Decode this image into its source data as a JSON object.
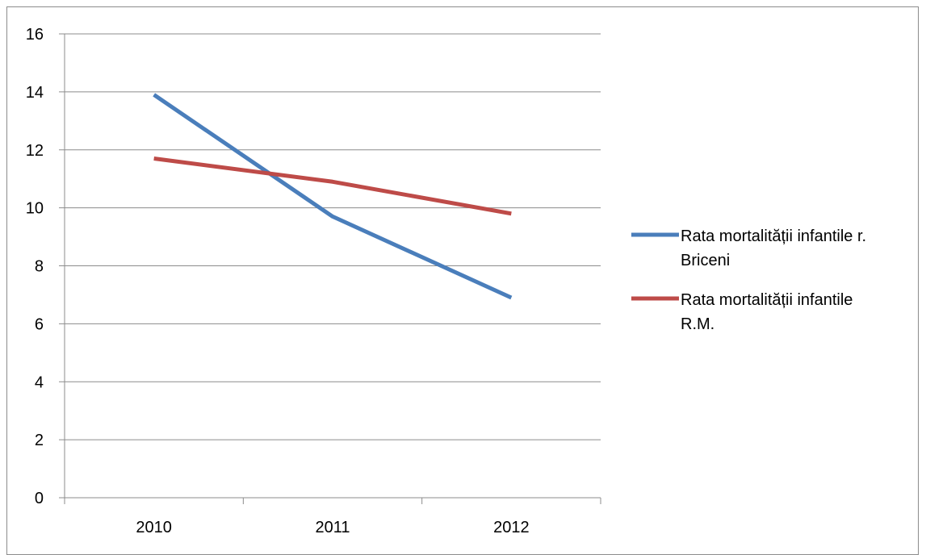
{
  "chart_data": {
    "type": "line",
    "title": "",
    "xlabel": "",
    "ylabel": "",
    "categories": [
      "2010",
      "2011",
      "2012"
    ],
    "ylim": [
      0,
      16
    ],
    "yticks": [
      0,
      2,
      4,
      6,
      8,
      10,
      12,
      14,
      16
    ],
    "grid": true,
    "legend_position": "right",
    "series": [
      {
        "name": "Rata mortalității infantile r. Briceni",
        "legend_lines": [
          "Rata mortalității infantile r.",
          "Briceni"
        ],
        "values": [
          13.9,
          9.7,
          6.9
        ],
        "color": "#4a7ebb"
      },
      {
        "name": "Rata mortalității infantile R.M.",
        "legend_lines": [
          "Rata mortalității infantile",
          "R.M."
        ],
        "values": [
          11.7,
          10.9,
          9.8
        ],
        "color": "#be4b48"
      }
    ]
  }
}
